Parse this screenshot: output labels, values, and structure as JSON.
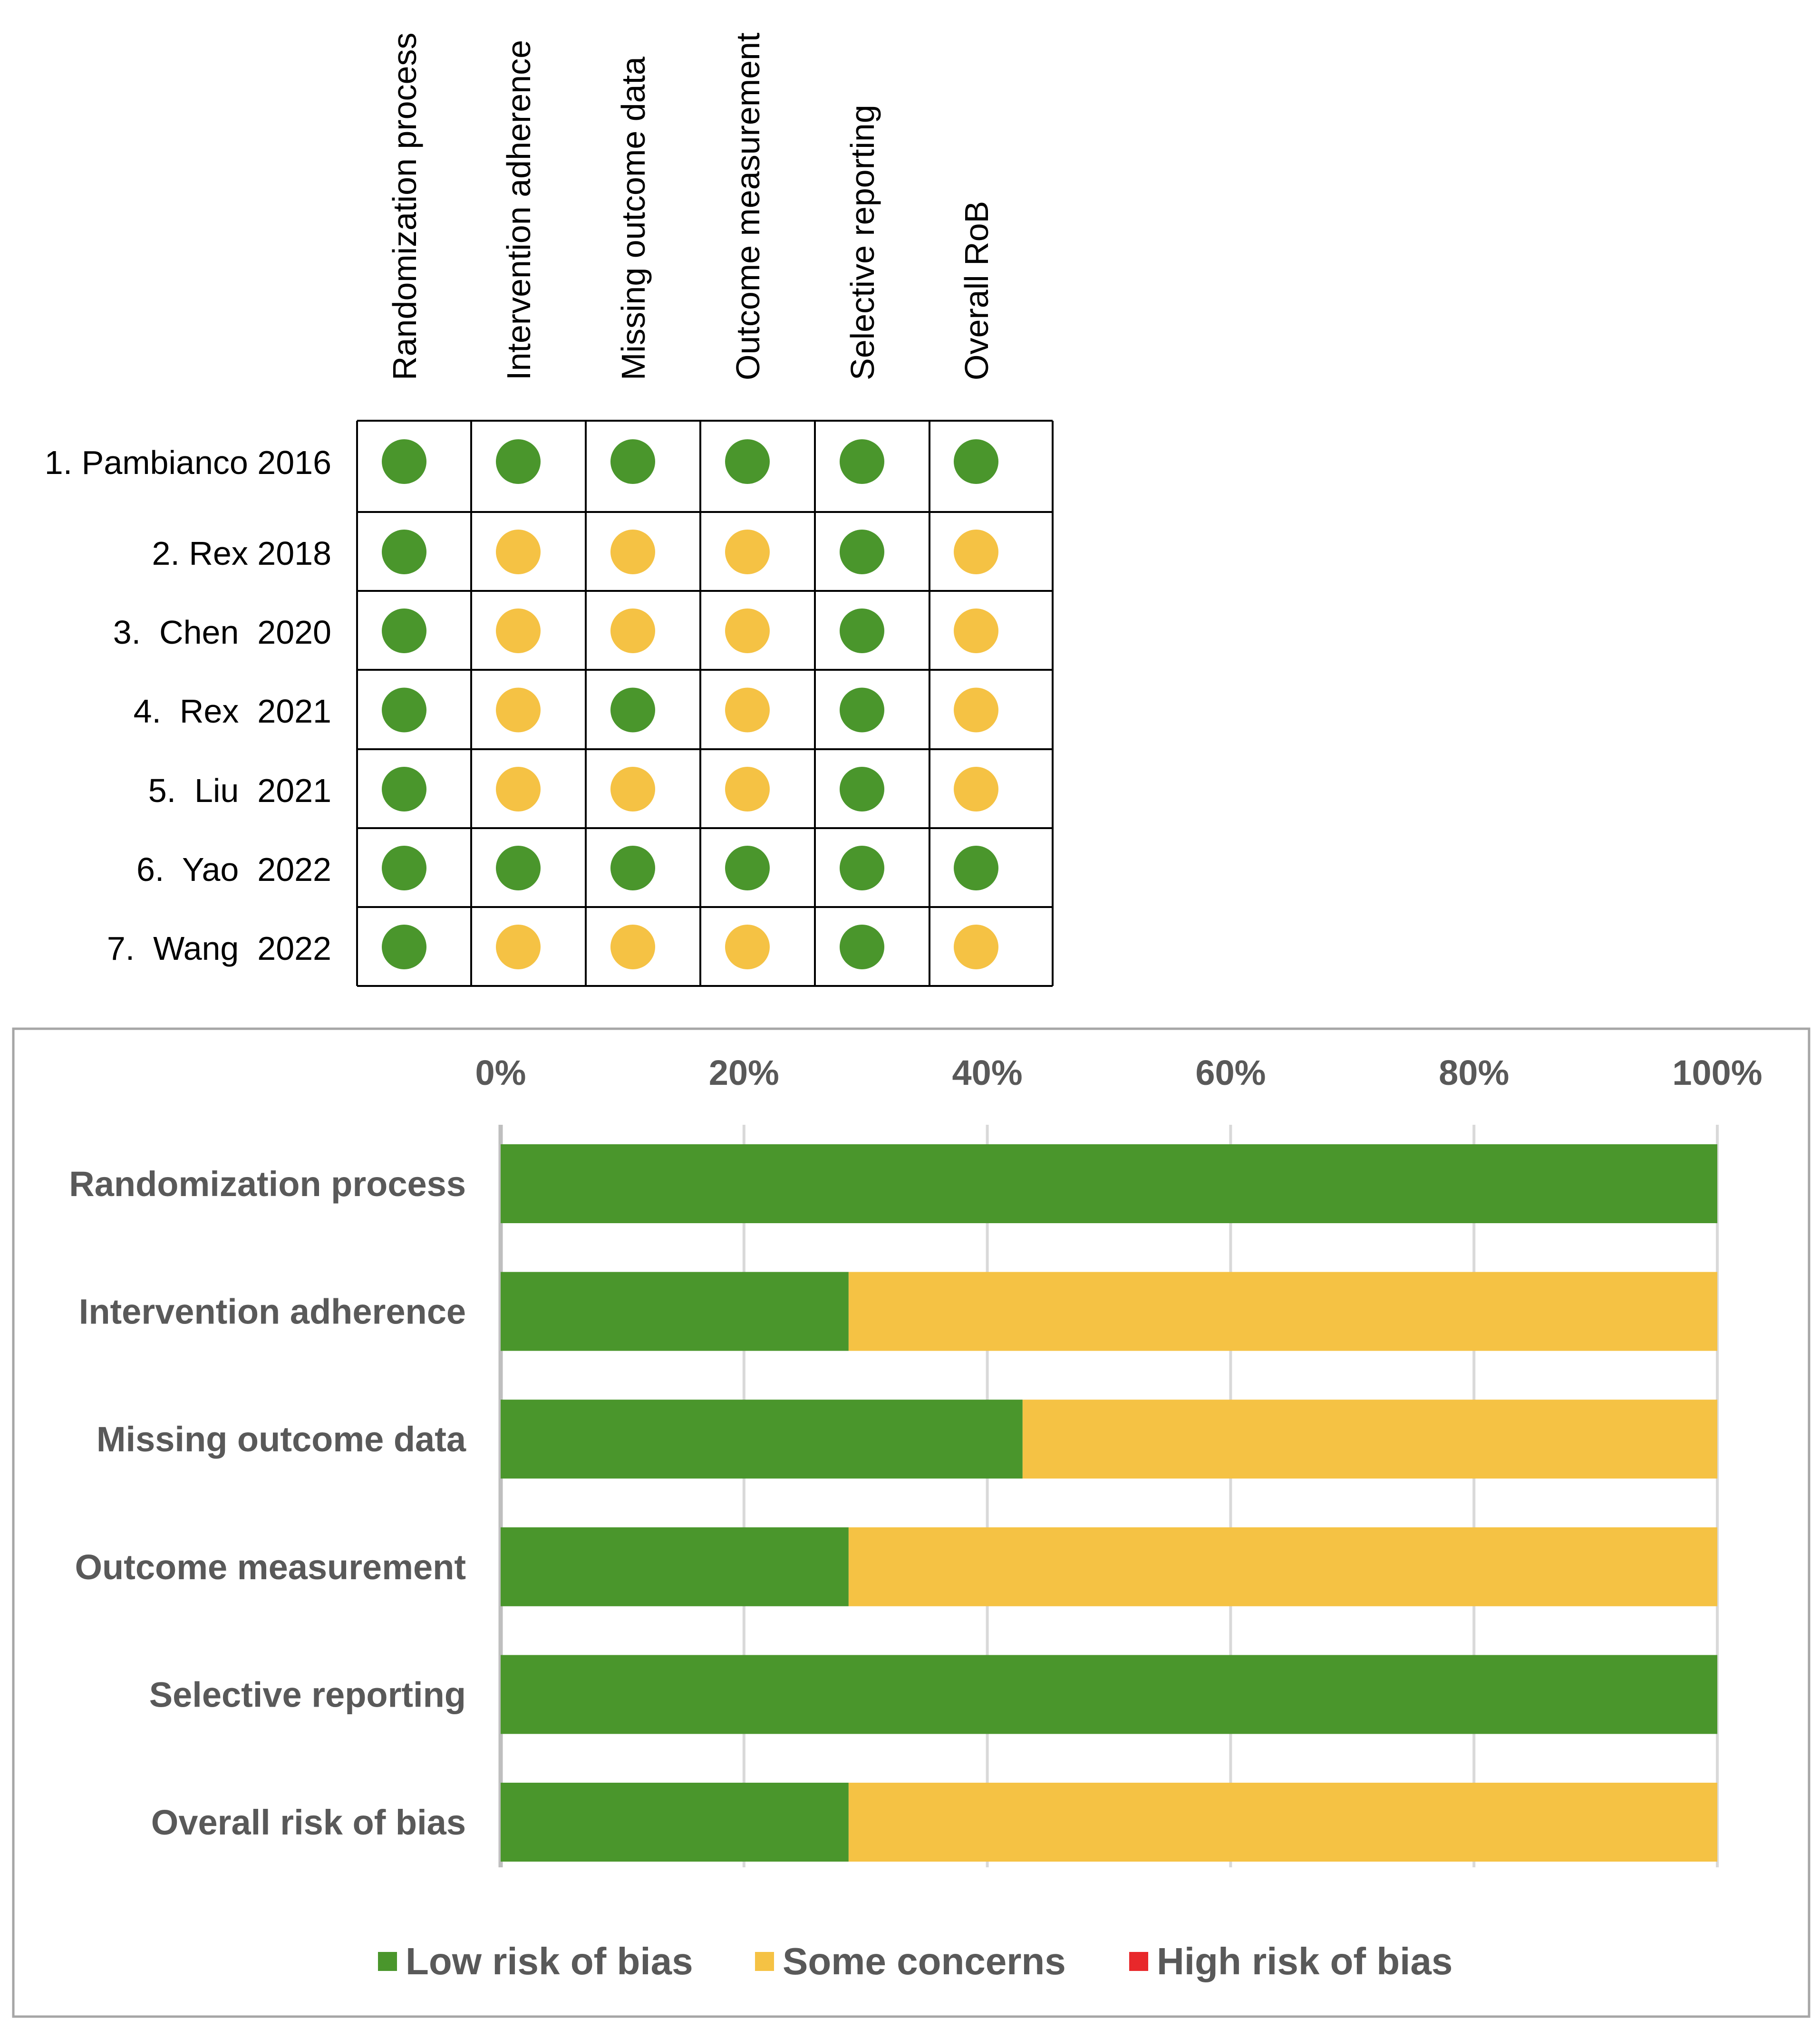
{
  "colors": {
    "low": "#4a962c",
    "some": "#f5c244",
    "high": "#e8282b",
    "grid": "#d9d9d9",
    "text": "#595959",
    "border": "#a6a6a6"
  },
  "traffic_light": {
    "domains": [
      "Randomization process",
      "Intervention adherence",
      "Missing outcome data",
      "Outcome measurement",
      "Selective reporting",
      "Overall RoB"
    ],
    "studies": [
      {
        "label": "1. Pambianco 2016",
        "judgements": [
          "low",
          "low",
          "low",
          "low",
          "low",
          "low"
        ]
      },
      {
        "label": "2. Rex 2018",
        "judgements": [
          "low",
          "some",
          "some",
          "some",
          "low",
          "some"
        ]
      },
      {
        "label": "3.  Chen  2020",
        "judgements": [
          "low",
          "some",
          "some",
          "some",
          "low",
          "some"
        ]
      },
      {
        "label": "4.  Rex  2021",
        "judgements": [
          "low",
          "some",
          "low",
          "some",
          "low",
          "some"
        ]
      },
      {
        "label": "5.  Liu  2021",
        "judgements": [
          "low",
          "some",
          "some",
          "some",
          "low",
          "some"
        ]
      },
      {
        "label": "6.  Yao  2022",
        "judgements": [
          "low",
          "low",
          "low",
          "low",
          "low",
          "low"
        ]
      },
      {
        "label": "7.  Wang  2022",
        "judgements": [
          "low",
          "some",
          "some",
          "some",
          "low",
          "some"
        ]
      }
    ]
  },
  "chart_data": {
    "type": "bar",
    "orientation": "horizontal",
    "stacked": true,
    "categories": [
      "Randomization process",
      "Intervention adherence",
      "Missing outcome data",
      "Outcome measurement",
      "Selective reporting",
      "Overall risk of bias"
    ],
    "series": [
      {
        "name": "Low risk of bias",
        "key": "low",
        "values": [
          100,
          28.6,
          42.9,
          28.6,
          100,
          28.6
        ]
      },
      {
        "name": "Some concerns",
        "key": "some",
        "values": [
          0,
          71.4,
          57.1,
          71.4,
          0,
          71.4
        ]
      },
      {
        "name": "High risk of bias",
        "key": "high",
        "values": [
          0,
          0,
          0,
          0,
          0,
          0
        ]
      }
    ],
    "xlim": [
      0,
      100
    ],
    "ticks": [
      0,
      20,
      40,
      60,
      80,
      100
    ],
    "tick_labels": [
      "0%",
      "20%",
      "40%",
      "60%",
      "80%",
      "100%"
    ],
    "axis_position": "top",
    "grid": true,
    "legend_position": "bottom",
    "title": "",
    "xlabel": "",
    "ylabel": ""
  }
}
